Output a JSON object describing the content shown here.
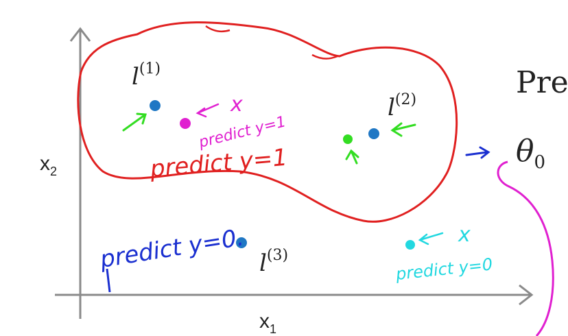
{
  "axes": {
    "x_label": "x",
    "x_sub": "1",
    "y_label": "x",
    "y_sub": "2"
  },
  "landmarks": [
    {
      "base": "l",
      "sup": "(1)",
      "color": "#1f77c4"
    },
    {
      "base": "l",
      "sup": "(2)",
      "color": "#1f77c4"
    },
    {
      "base": "l",
      "sup": "(3)",
      "color": "#1f77c4"
    }
  ],
  "annotations": {
    "region_label": "predict y=1",
    "magenta_point_label": "predict y=1",
    "magenta_point_x": "x",
    "blue_label": "predict y=0.",
    "cyan_point_x": "x",
    "cyan_label": "predict y=0"
  },
  "side_text": {
    "right_text_cut": "Pre",
    "theta": "θ",
    "theta_sub": "0"
  },
  "colors": {
    "boundary": "#e02020",
    "landmark": "#1f77c4",
    "magenta": "#e020d0",
    "green": "#33dd22",
    "cyan": "#22d8e0",
    "blue_ink": "#1a2fd0",
    "axis": "#8a8a8a"
  }
}
